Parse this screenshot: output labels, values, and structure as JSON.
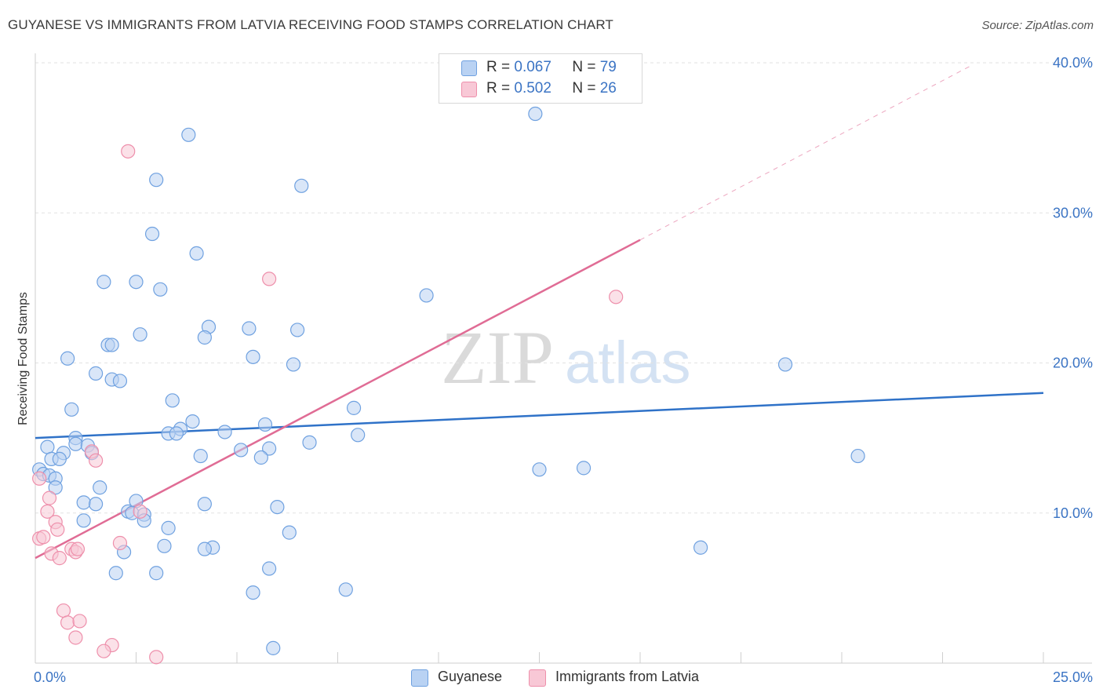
{
  "title": "GUYANESE VS IMMIGRANTS FROM LATVIA RECEIVING FOOD STAMPS CORRELATION CHART",
  "source": "Source: ZipAtlas.com",
  "watermark": {
    "zip": "ZIP",
    "atlas": "atlas"
  },
  "legend": {
    "r_label": "R =",
    "n_label": "N =",
    "series": [
      {
        "r": "0.067",
        "n": "79"
      },
      {
        "r": "0.502",
        "n": "26"
      }
    ]
  },
  "chart_data": {
    "type": "scatter",
    "title": "GUYANESE VS IMMIGRANTS FROM LATVIA RECEIVING FOOD STAMPS CORRELATION CHART",
    "xlabel": "",
    "ylabel": "Receiving Food Stamps",
    "xlim": [
      0,
      25
    ],
    "ylim": [
      0,
      40
    ],
    "x_tick_labels": [
      "0.0%",
      "25.0%"
    ],
    "y_ticks": [
      10,
      20,
      30,
      40
    ],
    "y_tick_labels": [
      "10.0%",
      "20.0%",
      "30.0%",
      "40.0%"
    ],
    "grid": true,
    "legend_position": "top-center",
    "series": [
      {
        "name": "Guyanese",
        "color": "#6fa1e0",
        "fill": "#b9d2f3",
        "line_color": "#2f72c8",
        "trend": {
          "x": [
            0,
            25
          ],
          "y": [
            15.0,
            18.0
          ]
        },
        "points": [
          [
            3.8,
            35.2
          ],
          [
            3.0,
            32.2
          ],
          [
            6.6,
            31.8
          ],
          [
            2.9,
            28.6
          ],
          [
            4.0,
            27.3
          ],
          [
            1.7,
            25.4
          ],
          [
            2.5,
            25.4
          ],
          [
            3.1,
            24.9
          ],
          [
            9.7,
            24.5
          ],
          [
            4.3,
            22.4
          ],
          [
            5.3,
            22.3
          ],
          [
            6.5,
            22.2
          ],
          [
            2.6,
            21.9
          ],
          [
            4.2,
            21.7
          ],
          [
            1.8,
            21.2
          ],
          [
            1.9,
            21.2
          ],
          [
            0.8,
            20.3
          ],
          [
            5.4,
            20.4
          ],
          [
            6.4,
            19.9
          ],
          [
            1.5,
            19.3
          ],
          [
            1.9,
            18.9
          ],
          [
            2.1,
            18.8
          ],
          [
            3.4,
            17.5
          ],
          [
            7.9,
            17.0
          ],
          [
            0.9,
            16.9
          ],
          [
            3.9,
            16.1
          ],
          [
            5.7,
            15.9
          ],
          [
            3.6,
            15.6
          ],
          [
            3.3,
            15.3
          ],
          [
            3.5,
            15.3
          ],
          [
            4.7,
            15.4
          ],
          [
            8.0,
            15.2
          ],
          [
            1.0,
            15.0
          ],
          [
            1.0,
            14.6
          ],
          [
            1.3,
            14.5
          ],
          [
            0.3,
            14.4
          ],
          [
            6.8,
            14.7
          ],
          [
            0.7,
            14.0
          ],
          [
            4.1,
            13.8
          ],
          [
            5.1,
            14.2
          ],
          [
            5.8,
            14.3
          ],
          [
            1.4,
            14.0
          ],
          [
            0.4,
            13.6
          ],
          [
            0.6,
            13.6
          ],
          [
            5.6,
            13.7
          ],
          [
            0.1,
            12.9
          ],
          [
            0.2,
            12.6
          ],
          [
            0.35,
            12.5
          ],
          [
            0.5,
            12.3
          ],
          [
            1.6,
            11.7
          ],
          [
            0.5,
            11.7
          ],
          [
            1.2,
            10.7
          ],
          [
            2.5,
            10.8
          ],
          [
            1.5,
            10.6
          ],
          [
            4.2,
            10.6
          ],
          [
            6.0,
            10.4
          ],
          [
            2.3,
            10.1
          ],
          [
            2.4,
            10.0
          ],
          [
            2.7,
            9.9
          ],
          [
            2.7,
            9.5
          ],
          [
            1.2,
            9.5
          ],
          [
            3.3,
            9.0
          ],
          [
            6.3,
            8.7
          ],
          [
            3.2,
            7.8
          ],
          [
            4.4,
            7.7
          ],
          [
            4.2,
            7.6
          ],
          [
            2.2,
            7.4
          ],
          [
            2.0,
            6.0
          ],
          [
            3.0,
            6.0
          ],
          [
            5.8,
            6.3
          ],
          [
            5.4,
            4.7
          ],
          [
            7.7,
            4.9
          ],
          [
            5.9,
            1.0
          ],
          [
            12.4,
            36.6
          ],
          [
            18.6,
            19.9
          ],
          [
            20.4,
            13.8
          ],
          [
            12.5,
            12.9
          ],
          [
            13.6,
            13.0
          ],
          [
            16.5,
            7.7
          ]
        ]
      },
      {
        "name": "Immigrants from Latvia",
        "color": "#ee8fab",
        "fill": "#f8c8d6",
        "line_color": "#e06c95",
        "trend": {
          "x": [
            0,
            15
          ],
          "y": [
            7.0,
            28.2
          ]
        },
        "trend_extension": {
          "x": [
            15,
            23.2
          ],
          "y": [
            28.2,
            39.8
          ]
        },
        "points": [
          [
            2.3,
            34.1
          ],
          [
            5.8,
            25.6
          ],
          [
            14.4,
            24.4
          ],
          [
            0.1,
            12.3
          ],
          [
            1.4,
            14.1
          ],
          [
            1.5,
            13.5
          ],
          [
            0.35,
            11.0
          ],
          [
            0.3,
            10.1
          ],
          [
            0.5,
            9.4
          ],
          [
            0.55,
            8.9
          ],
          [
            0.1,
            8.3
          ],
          [
            0.2,
            8.4
          ],
          [
            0.4,
            7.3
          ],
          [
            0.6,
            7.0
          ],
          [
            0.9,
            7.6
          ],
          [
            1.0,
            7.4
          ],
          [
            1.05,
            7.6
          ],
          [
            2.1,
            8.0
          ],
          [
            2.6,
            10.1
          ],
          [
            0.7,
            3.5
          ],
          [
            0.8,
            2.7
          ],
          [
            1.1,
            2.8
          ],
          [
            1.0,
            1.7
          ],
          [
            1.9,
            1.2
          ],
          [
            1.7,
            0.8
          ],
          [
            3.0,
            0.4
          ]
        ]
      }
    ]
  }
}
